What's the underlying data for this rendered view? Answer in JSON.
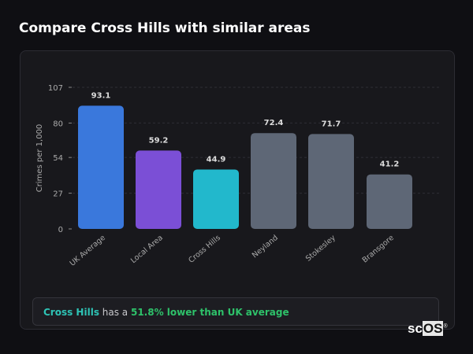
{
  "title": "Compare Cross Hills with similar areas",
  "chart_data": {
    "type": "bar",
    "title": "",
    "xlabel": "",
    "ylabel": "Crimes per 1,000",
    "ylim": [
      0,
      107
    ],
    "yticks": [
      0,
      27,
      54,
      80,
      107
    ],
    "grid": true,
    "categories": [
      "UK Average",
      "Local Area",
      "Cross Hills",
      "Neyland",
      "Stokesley",
      "Bransgore"
    ],
    "values": [
      93.1,
      59.2,
      44.9,
      72.4,
      71.7,
      41.2
    ],
    "value_labels": [
      "93.1",
      "59.2",
      "44.9",
      "72.4",
      "71.7",
      "41.2"
    ],
    "colors": [
      "#3a78dc",
      "#7b4fd6",
      "#22b8cc",
      "#5e6776",
      "#5e6776",
      "#5e6776"
    ]
  },
  "info": {
    "area": "Cross Hills",
    "middle": " has a ",
    "comparison": "51.8% lower than UK average"
  },
  "watermark": {
    "sc": "sc",
    "os": "OS",
    "reg": "®"
  }
}
